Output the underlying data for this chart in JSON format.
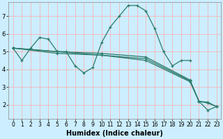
{
  "xlabel": "Humidex (Indice chaleur)",
  "bg_color": "#cceeff",
  "grid_color": "#ffffff",
  "line_color": "#2a7a6a",
  "xlim": [
    -0.5,
    23.5
  ],
  "ylim": [
    1.2,
    7.8
  ],
  "yticks": [
    2,
    3,
    4,
    5,
    6,
    7
  ],
  "xticks": [
    0,
    1,
    2,
    3,
    4,
    5,
    6,
    7,
    8,
    9,
    10,
    11,
    12,
    13,
    14,
    15,
    16,
    17,
    18,
    19,
    20,
    21,
    22,
    23
  ],
  "line1_x": [
    0,
    1,
    2,
    3,
    4,
    5,
    6,
    7,
    8,
    9,
    10,
    11,
    12,
    13,
    14,
    15,
    16,
    17,
    18,
    19,
    20
  ],
  "line1_y": [
    5.2,
    4.5,
    5.2,
    5.8,
    5.7,
    5.0,
    5.0,
    4.2,
    3.8,
    4.1,
    5.5,
    6.4,
    7.0,
    7.6,
    7.6,
    7.3,
    6.3,
    5.0,
    4.2,
    4.5,
    4.5
  ],
  "line2_x": [
    0,
    5,
    10,
    15,
    20,
    21,
    22,
    23
  ],
  "line2_y": [
    5.2,
    5.0,
    4.8,
    4.5,
    3.3,
    2.2,
    2.1,
    1.9
  ],
  "line3_x": [
    0,
    5,
    10,
    15,
    20,
    21,
    22,
    23
  ],
  "line3_y": [
    5.2,
    5.0,
    4.9,
    4.7,
    3.4,
    2.2,
    2.15,
    1.9
  ],
  "line4_x": [
    0,
    5,
    10,
    15,
    20,
    21,
    22,
    23
  ],
  "line4_y": [
    5.2,
    4.9,
    4.8,
    4.6,
    3.35,
    2.2,
    1.7,
    1.9
  ]
}
